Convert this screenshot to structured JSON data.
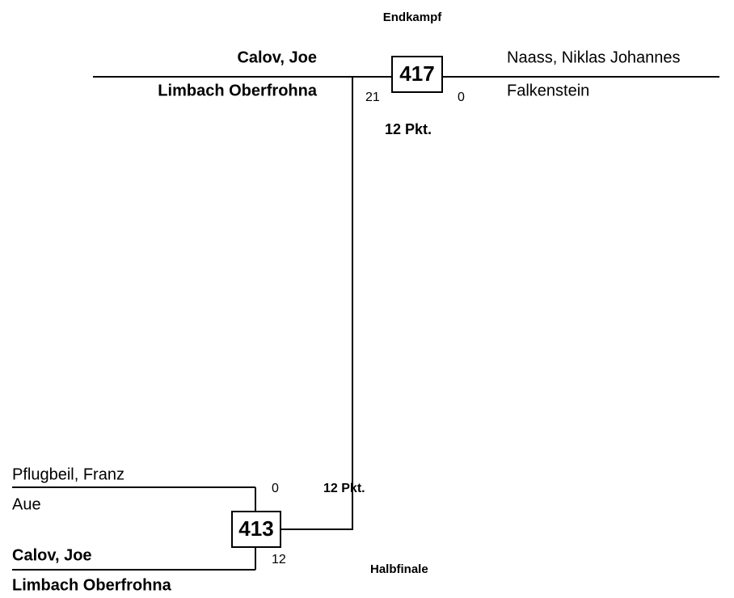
{
  "rounds": [
    {
      "title": "Endkampf",
      "match": "417",
      "players": [
        {
          "name": "Calov, Joe",
          "club": "Limbach Oberfrohna",
          "score": "21"
        },
        {
          "name": "Naass, Niklas Johannes",
          "club": "Falkenstein",
          "score": "0"
        }
      ],
      "points": "12 Pkt."
    },
    {
      "title": "Halbfinale",
      "match": "413",
      "players": [
        {
          "name": "Pflugbeil, Franz",
          "club": "Aue",
          "score": "0"
        },
        {
          "name": "Calov, Joe",
          "club": "Limbach Oberfrohna",
          "score": "12"
        }
      ],
      "points": "12 Pkt."
    }
  ]
}
